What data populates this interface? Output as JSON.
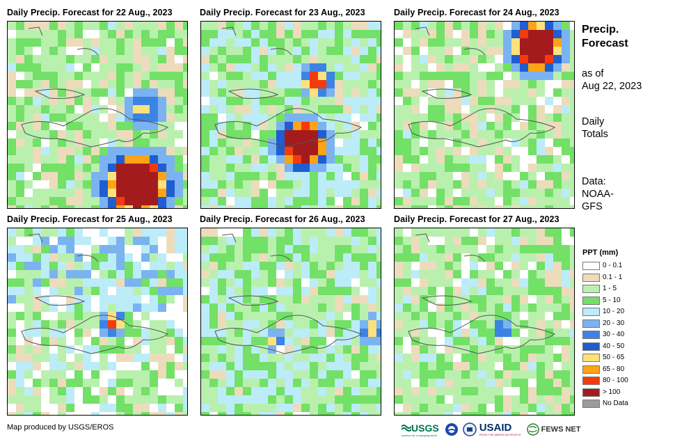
{
  "panels": [
    {
      "title": "Daily Precip. Forecast for 22 Aug., 2023"
    },
    {
      "title": "Daily Precip. Forecast for 23 Aug., 2023"
    },
    {
      "title": "Daily Precip. Forecast for 24 Aug., 2023"
    },
    {
      "title": "Daily Precip. Forecast for 25 Aug., 2023"
    },
    {
      "title": "Daily Precip. Forecast for 26 Aug., 2023"
    },
    {
      "title": "Daily Precip. Forecast for 27 Aug., 2023"
    }
  ],
  "sidebar": {
    "title_line1": "Precip.",
    "title_line2": "Forecast",
    "as_of_line1": "as of",
    "as_of_line2": "Aug 22, 2023",
    "daily_line1": "Daily",
    "daily_line2": "Totals",
    "data_line1": "Data:",
    "data_line2": "NOAA-",
    "data_line3": "GFS"
  },
  "legend": {
    "title": "PPT (mm)",
    "items": [
      {
        "label": "0 - 0.1",
        "color": "#ffffff"
      },
      {
        "label": "0.1 - 1",
        "color": "#ecdcbc"
      },
      {
        "label": "1 - 5",
        "color": "#b9f0ae"
      },
      {
        "label": "5 - 10",
        "color": "#73e067"
      },
      {
        "label": "10 - 20",
        "color": "#bcecf7"
      },
      {
        "label": "20 - 30",
        "color": "#7ab3f0"
      },
      {
        "label": "30 - 40",
        "color": "#3c83e4"
      },
      {
        "label": "40 - 50",
        "color": "#1f5dd0"
      },
      {
        "label": "50 - 65",
        "color": "#fce17c"
      },
      {
        "label": "65 - 80",
        "color": "#fca316"
      },
      {
        "label": "80 - 100",
        "color": "#f43b0d"
      },
      {
        "label": "> 100",
        "color": "#a41b1d"
      },
      {
        "label": "No Data",
        "color": "#9c9c9c"
      }
    ]
  },
  "footer": {
    "credit": "Map produced by USGS/EROS",
    "logos": {
      "usgs": "USGS",
      "usgs_tagline": "science for a changing world",
      "usaid": "USAID",
      "usaid_tagline": "FROM THE AMERICAN PEOPLE",
      "fewsnet": "FEWS NET"
    }
  }
}
